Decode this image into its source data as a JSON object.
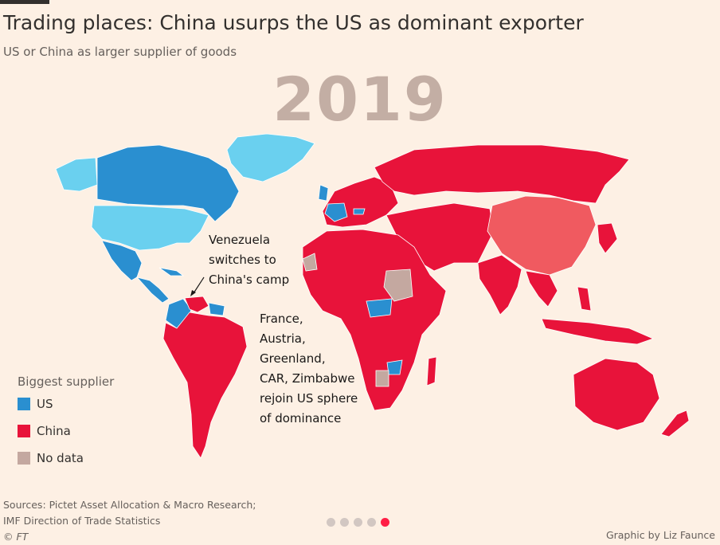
{
  "chart": {
    "title": "Trading places: China usurps the US as dominant exporter",
    "subtitle": "US or China as larger supplier of goods",
    "year": "2019"
  },
  "colors": {
    "us": "#2a8fd0",
    "us_light": "#6ad0ef",
    "china": "#e8133a",
    "china_mainland": "#f05a60",
    "no_data": "#c4a8a0",
    "background": "#fdf0e4"
  },
  "annotations": {
    "venezuela": [
      "Venezuela",
      "switches to",
      "China's camp"
    ],
    "us_sphere": [
      "France,",
      "Austria,",
      "Greenland,",
      "CAR, Zimbabwe",
      "rejoin US sphere",
      "of dominance"
    ]
  },
  "legend": {
    "title": "Biggest supplier",
    "items": [
      {
        "label": "US",
        "color": "#2a8fd0"
      },
      {
        "label": "China",
        "color": "#e8133a"
      },
      {
        "label": "No data",
        "color": "#c4a8a0"
      }
    ]
  },
  "footer": {
    "sources": [
      "Sources: Pictet Asset Allocation & Macro Research;",
      "IMF Direction of Trade Statistics"
    ],
    "copyright": "© FT",
    "credit": "Graphic by Liz Faunce"
  },
  "pagination": {
    "total": 5,
    "active": 5
  },
  "map_data": {
    "type": "choropleth",
    "regions": [
      {
        "name": "Greenland",
        "supplier": "US"
      },
      {
        "name": "Canada",
        "supplier": "US"
      },
      {
        "name": "United States",
        "supplier": "US (home)"
      },
      {
        "name": "Mexico",
        "supplier": "US"
      },
      {
        "name": "Central America",
        "supplier": "US"
      },
      {
        "name": "Venezuela",
        "supplier": "China"
      },
      {
        "name": "Colombia",
        "supplier": "US"
      },
      {
        "name": "Guyana/Suriname",
        "supplier": "US"
      },
      {
        "name": "South America",
        "supplier": "China"
      },
      {
        "name": "France",
        "supplier": "US"
      },
      {
        "name": "Austria",
        "supplier": "US"
      },
      {
        "name": "Europe",
        "supplier": "China"
      },
      {
        "name": "Russia",
        "supplier": "China"
      },
      {
        "name": "Western Sahara",
        "supplier": "No data"
      },
      {
        "name": "Africa",
        "supplier": "China"
      },
      {
        "name": "Sudan",
        "supplier": "No data"
      },
      {
        "name": "Central African Republic",
        "supplier": "US"
      },
      {
        "name": "Zimbabwe",
        "supplier": "US"
      },
      {
        "name": "Botswana",
        "supplier": "No data"
      },
      {
        "name": "Middle East",
        "supplier": "China"
      },
      {
        "name": "China",
        "supplier": "China (home)"
      },
      {
        "name": "India",
        "supplier": "China"
      },
      {
        "name": "Southeast Asia",
        "supplier": "China"
      },
      {
        "name": "Japan",
        "supplier": "China"
      },
      {
        "name": "Australia",
        "supplier": "China"
      },
      {
        "name": "New Zealand",
        "supplier": "China"
      }
    ]
  }
}
